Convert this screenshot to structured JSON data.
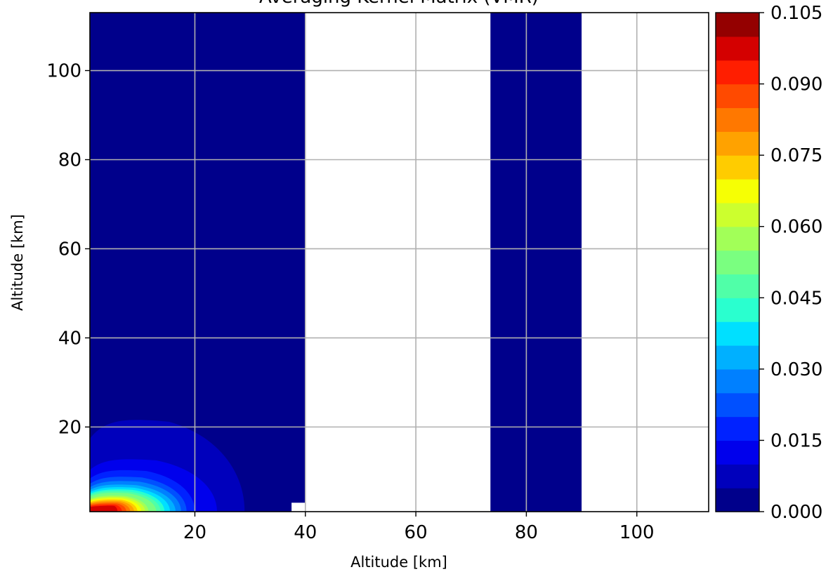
{
  "chart_data": {
    "type": "heatmap",
    "title": "Averaging Kernel Matrix (VMR)",
    "xlabel": "Altitude [km]",
    "ylabel": "Altitude [km]",
    "xlim": [
      1,
      113
    ],
    "ylim": [
      1,
      113
    ],
    "x_ticks": [
      "20",
      "40",
      "60",
      "80",
      "100"
    ],
    "x_tick_values": [
      20,
      40,
      60,
      80,
      100
    ],
    "y_ticks": [
      "20",
      "40",
      "60",
      "80",
      "100"
    ],
    "y_tick_values": [
      20,
      40,
      60,
      80,
      100
    ],
    "grid": true,
    "colormap": "jet",
    "colorbar": {
      "range": [
        0,
        0.105
      ],
      "levels": 21,
      "tick_labels": [
        "0.000",
        "0.015",
        "0.030",
        "0.045",
        "0.060",
        "0.075",
        "0.090",
        "0.105"
      ],
      "tick_values": [
        0,
        0.015,
        0.03,
        0.045,
        0.06,
        0.075,
        0.09,
        0.105
      ]
    },
    "background_value": 0.0,
    "filled_x_bands": [
      [
        1,
        40
      ],
      [
        73.5,
        90
      ]
    ],
    "blank_x_bands": [
      [
        40,
        73.5
      ],
      [
        90,
        113
      ]
    ],
    "kernel_peak": {
      "x": 5,
      "y": 1,
      "value": 0.105
    },
    "kernel_contours": [
      {
        "level": 0.005,
        "x_extent": 29,
        "y_extent": 21,
        "x_peak": 8
      },
      {
        "level": 0.01,
        "x_extent": 24,
        "y_extent": 12,
        "x_peak": 7
      },
      {
        "level": 0.015,
        "x_extent": 20,
        "y_extent": 9.5,
        "x_peak": 6.5
      },
      {
        "level": 0.02,
        "x_extent": 18.5,
        "y_extent": 8,
        "x_peak": 6
      },
      {
        "level": 0.025,
        "x_extent": 17.5,
        "y_extent": 7,
        "x_peak": 6
      },
      {
        "level": 0.03,
        "x_extent": 16.5,
        "y_extent": 6.2,
        "x_peak": 5.5
      },
      {
        "level": 0.035,
        "x_extent": 15.5,
        "y_extent": 5.6,
        "x_peak": 5.5
      },
      {
        "level": 0.04,
        "x_extent": 14.5,
        "y_extent": 5.1,
        "x_peak": 5.5
      },
      {
        "level": 0.045,
        "x_extent": 13.8,
        "y_extent": 4.7,
        "x_peak": 5
      },
      {
        "level": 0.05,
        "x_extent": 13,
        "y_extent": 4.3,
        "x_peak": 5
      },
      {
        "level": 0.055,
        "x_extent": 12.3,
        "y_extent": 4.0,
        "x_peak": 5
      },
      {
        "level": 0.06,
        "x_extent": 11.6,
        "y_extent": 3.7,
        "x_peak": 5
      },
      {
        "level": 0.065,
        "x_extent": 11,
        "y_extent": 3.4,
        "x_peak": 5
      },
      {
        "level": 0.07,
        "x_extent": 10.3,
        "y_extent": 3.1,
        "x_peak": 5
      },
      {
        "level": 0.075,
        "x_extent": 9.6,
        "y_extent": 2.8,
        "x_peak": 5
      },
      {
        "level": 0.08,
        "x_extent": 9,
        "y_extent": 2.5,
        "x_peak": 5
      },
      {
        "level": 0.085,
        "x_extent": 8.3,
        "y_extent": 2.2,
        "x_peak": 5
      },
      {
        "level": 0.09,
        "x_extent": 7.6,
        "y_extent": 1.9,
        "x_peak": 5
      },
      {
        "level": 0.095,
        "x_extent": 6.8,
        "y_extent": 1.6,
        "x_peak": 5
      },
      {
        "level": 0.1,
        "x_extent": 6,
        "y_extent": 1.35,
        "x_peak": 5
      }
    ]
  },
  "colors": {
    "jet_levels": [
      "#00008b",
      "#0000bc",
      "#0000ec",
      "#0022ff",
      "#0050ff",
      "#0080ff",
      "#00b0ff",
      "#00e0ff",
      "#2affcf",
      "#50ffa8",
      "#7aff80",
      "#a2ff58",
      "#ccff2e",
      "#f6ff04",
      "#ffcc00",
      "#ffa200",
      "#ff7800",
      "#ff4a00",
      "#ff1e00",
      "#d40000",
      "#940000"
    ],
    "grid": "#b0b0b0",
    "axes": "#000000"
  }
}
